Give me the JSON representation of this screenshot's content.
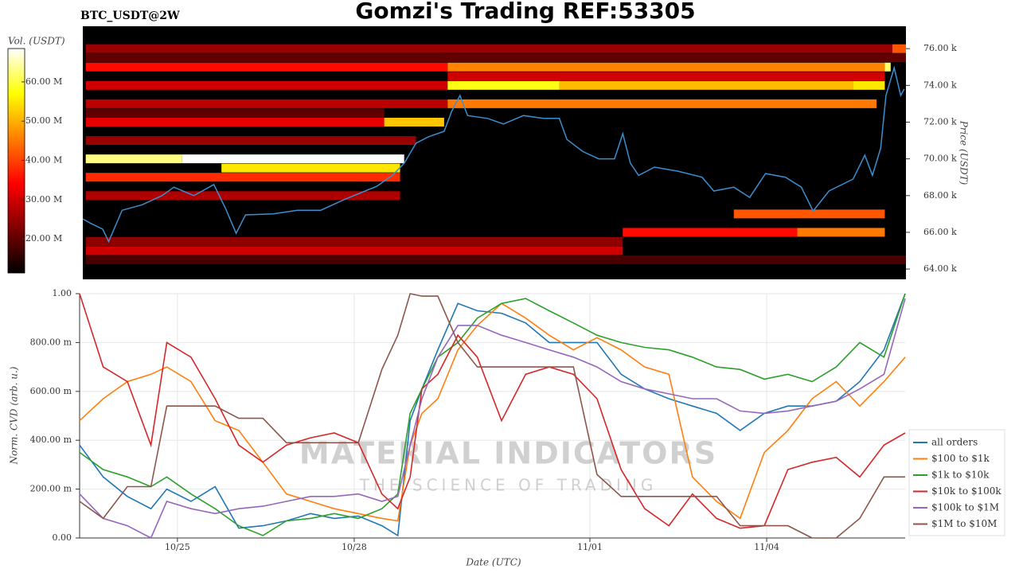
{
  "chart_data": [
    {
      "type": "heatmap",
      "title": "Gomzi's Trading REF:53305",
      "subtitle": "BTC_USDT@2W",
      "ylabel": "Price (USDT)",
      "xlim": [
        -1.66,
        12.35
      ],
      "ylim": [
        63440,
        77220
      ],
      "yticks": [
        {
          "value": 64000,
          "label": "64.00 k"
        },
        {
          "value": 66000,
          "label": "66.00 k"
        },
        {
          "value": 68000,
          "label": "68.00 k"
        },
        {
          "value": 70000,
          "label": "70.00 k"
        },
        {
          "value": 72000,
          "label": "72.00 k"
        },
        {
          "value": 74000,
          "label": "74.00 k"
        },
        {
          "value": 76000,
          "label": "76.00 k"
        }
      ],
      "colormap": "hot",
      "colorbar": {
        "label": "Vol. (USDT)",
        "clim": [
          11300000,
          68500000
        ],
        "ticks": [
          {
            "value": 20000000,
            "label": "20.00 M"
          },
          {
            "value": 30000000,
            "label": "30.00 M"
          },
          {
            "value": 40000000,
            "label": "40.00 M"
          },
          {
            "value": 50000000,
            "label": "50.00 M"
          },
          {
            "value": 60000000,
            "label": "60.00 M"
          }
        ]
      },
      "cells": {
        "x_start": [
          -1.61,
          12.12,
          -1.61,
          4.55,
          11.99,
          -1.61,
          4.55,
          6.45,
          11.45,
          -1.61,
          4.55,
          -1.61,
          3.47,
          -1.61,
          -1.61,
          0.03,
          0.7,
          -1.61,
          -1.61,
          9.42,
          7.53,
          10.5,
          -1.61,
          -1.61,
          -1.61,
          4.55,
          -1.61,
          -1.61
        ],
        "x_end": [
          12.12,
          12.36,
          4.55,
          11.99,
          12.09,
          4.55,
          6.45,
          11.45,
          11.99,
          4.55,
          11.85,
          3.47,
          4.49,
          4.01,
          0.03,
          3.81,
          3.74,
          3.74,
          3.74,
          11.99,
          10.5,
          11.99,
          7.53,
          7.53,
          12.36,
          11.99,
          3.47,
          12.36
        ],
        "y": [
          76000,
          76000,
          75000,
          75000,
          75000,
          74000,
          74000,
          74000,
          74000,
          73000,
          73000,
          72000,
          72000,
          71000,
          70000,
          70000,
          69500,
          69000,
          68000,
          67000,
          66000,
          66000,
          65500,
          65000,
          75500,
          74500,
          72500,
          64500
        ],
        "values": [
          25000000,
          42000000,
          35000000,
          46000000,
          62000000,
          30000000,
          58000000,
          51000000,
          55000000,
          28000000,
          45000000,
          32000000,
          52000000,
          25000000,
          63000000,
          75000000,
          55000000,
          38000000,
          27000000,
          42000000,
          35000000,
          45000000,
          24000000,
          30000000,
          20000000,
          30000000,
          20000000,
          18000000
        ]
      },
      "price_line": {
        "color": "#3a8fd0",
        "x": [
          -1.66,
          -1.53,
          -1.32,
          -1.22,
          -0.99,
          -0.65,
          -0.31,
          -0.11,
          0.23,
          0.57,
          0.77,
          0.95,
          1.11,
          1.58,
          1.99,
          2.39,
          2.8,
          3.34,
          3.61,
          3.81,
          4.01,
          4.22,
          4.49,
          4.62,
          4.76,
          4.89,
          5.23,
          5.5,
          5.84,
          6.18,
          6.45,
          6.58,
          6.85,
          7.12,
          7.39,
          7.53,
          7.66,
          7.8,
          8.07,
          8.47,
          8.88,
          9.08,
          9.42,
          9.69,
          9.96,
          10.3,
          10.57,
          10.77,
          11.04,
          11.45,
          11.65,
          11.78,
          11.92,
          12.01,
          12.15,
          12.26,
          12.32
        ],
        "values": [
          66730,
          66500,
          66170,
          65500,
          67200,
          67500,
          68000,
          68460,
          68000,
          68600,
          67300,
          65950,
          66950,
          67000,
          67200,
          67200,
          67800,
          68500,
          69100,
          69760,
          70850,
          71200,
          71500,
          72600,
          73450,
          72360,
          72200,
          71900,
          72360,
          72200,
          72200,
          71060,
          70400,
          70000,
          70000,
          71370,
          69760,
          69100,
          69550,
          69330,
          69000,
          68250,
          68460,
          67900,
          69200,
          69000,
          68460,
          67160,
          68250,
          68900,
          70200,
          69100,
          70600,
          73450,
          74960,
          73450,
          73800
        ]
      }
    },
    {
      "type": "line",
      "ylabel": "Norm. CVD (arb. u.)",
      "xlabel": "Date (UTC)",
      "watermark": {
        "title": "MATERIAL INDICATORS",
        "subtitle": "THE SCIENCE OF TRADING"
      },
      "grid": true,
      "legend": "lower right",
      "xlim": [
        -1.66,
        12.35
      ],
      "xticks": [
        {
          "value": 0,
          "label": "10/25"
        },
        {
          "value": 3,
          "label": "10/28"
        },
        {
          "value": 7,
          "label": "11/01"
        },
        {
          "value": 10,
          "label": "11/04"
        }
      ],
      "ylim": [
        0,
        1
      ],
      "yticks": [
        {
          "value": 0,
          "label": "0.00"
        },
        {
          "value": 0.2,
          "label": "200.00 m"
        },
        {
          "value": 0.4,
          "label": "400.00 m"
        },
        {
          "value": 0.6,
          "label": "600.00 m"
        },
        {
          "value": 0.8,
          "label": "800.00 m"
        },
        {
          "value": 1,
          "label": "1.00"
        }
      ],
      "x": [
        -1.66,
        -1.26,
        -0.85,
        -0.45,
        -0.18,
        0.23,
        0.64,
        1.04,
        1.45,
        1.85,
        2.26,
        2.66,
        3.07,
        3.47,
        3.74,
        3.95,
        4.15,
        4.42,
        4.76,
        5.09,
        5.5,
        5.91,
        6.31,
        6.72,
        7.12,
        7.53,
        7.93,
        8.34,
        8.74,
        9.15,
        9.55,
        9.96,
        10.36,
        10.77,
        11.18,
        11.58,
        11.99,
        12.35
      ],
      "series": [
        {
          "name": "all orders",
          "color": "#1f77b4",
          "values": [
            0.38,
            0.25,
            0.17,
            0.12,
            0.2,
            0.15,
            0.21,
            0.04,
            0.05,
            0.07,
            0.1,
            0.08,
            0.09,
            0.05,
            0.01,
            0.48,
            0.61,
            0.77,
            0.96,
            0.93,
            0.92,
            0.88,
            0.8,
            0.8,
            0.8,
            0.67,
            0.61,
            0.57,
            0.54,
            0.51,
            0.44,
            0.51,
            0.54,
            0.54,
            0.56,
            0.64,
            0.77,
            1.0
          ]
        },
        {
          "name": "$100 to $1k",
          "color": "#ff7f0e",
          "values": [
            0.48,
            0.57,
            0.64,
            0.67,
            0.7,
            0.64,
            0.48,
            0.44,
            0.31,
            0.18,
            0.15,
            0.12,
            0.1,
            0.08,
            0.07,
            0.38,
            0.51,
            0.57,
            0.77,
            0.87,
            0.96,
            0.9,
            0.83,
            0.77,
            0.82,
            0.77,
            0.7,
            0.67,
            0.25,
            0.15,
            0.08,
            0.35,
            0.44,
            0.57,
            0.64,
            0.54,
            0.64,
            0.74
          ]
        },
        {
          "name": "$1k to $10k",
          "color": "#2ca02c",
          "values": [
            0.35,
            0.28,
            0.25,
            0.21,
            0.25,
            0.18,
            0.12,
            0.05,
            0.01,
            0.07,
            0.08,
            0.1,
            0.08,
            0.12,
            0.18,
            0.51,
            0.61,
            0.74,
            0.8,
            0.9,
            0.96,
            0.98,
            0.93,
            0.88,
            0.83,
            0.8,
            0.78,
            0.77,
            0.74,
            0.7,
            0.69,
            0.65,
            0.67,
            0.64,
            0.7,
            0.8,
            0.74,
            1.0
          ]
        },
        {
          "name": "$10k to $100k",
          "color": "#d62728",
          "values": [
            1.0,
            0.7,
            0.64,
            0.38,
            0.8,
            0.74,
            0.57,
            0.38,
            0.31,
            0.38,
            0.41,
            0.43,
            0.39,
            0.18,
            0.12,
            0.25,
            0.61,
            0.67,
            0.83,
            0.74,
            0.48,
            0.67,
            0.7,
            0.67,
            0.57,
            0.28,
            0.12,
            0.05,
            0.18,
            0.08,
            0.04,
            0.05,
            0.28,
            0.31,
            0.33,
            0.25,
            0.38,
            0.43
          ]
        },
        {
          "name": "$100k to $1M",
          "color": "#9467bd",
          "values": [
            0.18,
            0.08,
            0.05,
            0.0,
            0.15,
            0.12,
            0.1,
            0.12,
            0.13,
            0.15,
            0.17,
            0.17,
            0.18,
            0.15,
            0.17,
            0.38,
            0.57,
            0.74,
            0.87,
            0.87,
            0.83,
            0.8,
            0.77,
            0.74,
            0.7,
            0.64,
            0.61,
            0.59,
            0.57,
            0.57,
            0.52,
            0.51,
            0.52,
            0.54,
            0.56,
            0.61,
            0.67,
            0.98
          ]
        },
        {
          "name": "$1M to $10M",
          "color": "#8c564b",
          "values": [
            0.15,
            0.08,
            0.21,
            0.21,
            0.54,
            0.54,
            0.54,
            0.49,
            0.49,
            0.39,
            0.39,
            0.39,
            0.39,
            0.69,
            0.83,
            1.0,
            0.99,
            0.99,
            0.8,
            0.7,
            0.7,
            0.7,
            0.7,
            0.7,
            0.26,
            0.17,
            0.17,
            0.17,
            0.17,
            0.17,
            0.05,
            0.05,
            0.05,
            0.0,
            0.0,
            0.08,
            0.25,
            0.25
          ]
        }
      ]
    }
  ]
}
